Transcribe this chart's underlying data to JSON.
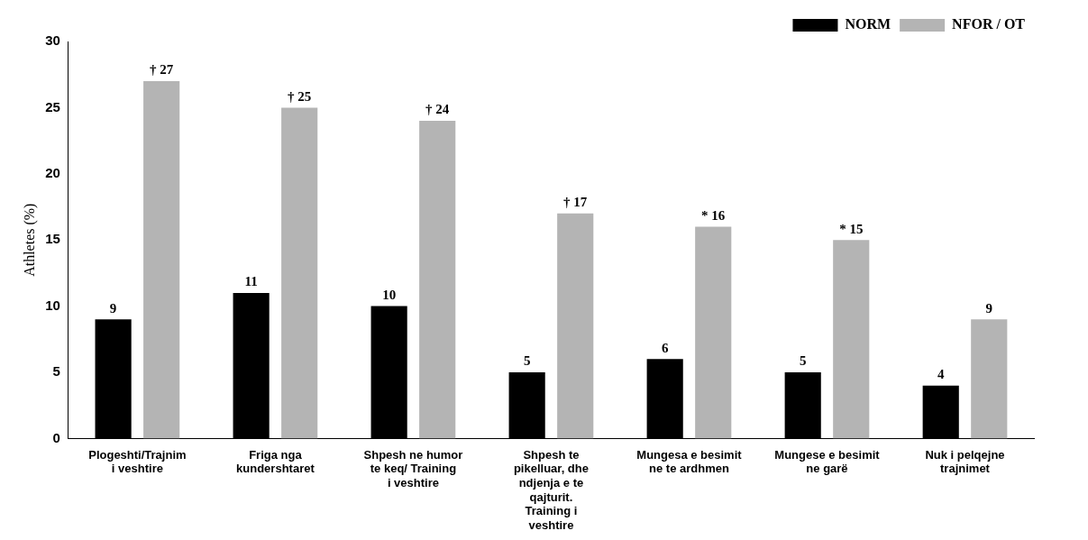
{
  "chart_data": {
    "type": "bar",
    "ylabel": "Athletes (%)",
    "categories": [
      "Plogeshti/Trajnim i veshtire",
      "Friga nga kundershtaret",
      "Shpesh ne humor te keq/ Training i veshtire",
      "Shpesh te pikelluar, dhe ndjenja e te qajturit. Training i veshtire",
      "Mungesa e besimit ne te ardhmen",
      "Mungese e besimit ne garë",
      "Nuk i pelqejne trajnimet"
    ],
    "series": [
      {
        "name": "NORM",
        "color": "#000000",
        "values": [
          9,
          11,
          10,
          5,
          6,
          5,
          4
        ],
        "value_labels": [
          "9",
          "11",
          "10",
          "5",
          "6",
          "5",
          "4"
        ]
      },
      {
        "name": "NFOR / OT",
        "color": "#b4b4b4",
        "values": [
          27,
          25,
          24,
          17,
          16,
          15,
          9
        ],
        "value_labels": [
          "† 27",
          "† 25",
          "† 24",
          "† 17",
          "* 16",
          "* 15",
          "9"
        ]
      }
    ],
    "ylim": [
      0,
      30
    ],
    "yticks": [
      0,
      5,
      10,
      15,
      20,
      25,
      30
    ],
    "grid": false,
    "legend": "top right"
  }
}
